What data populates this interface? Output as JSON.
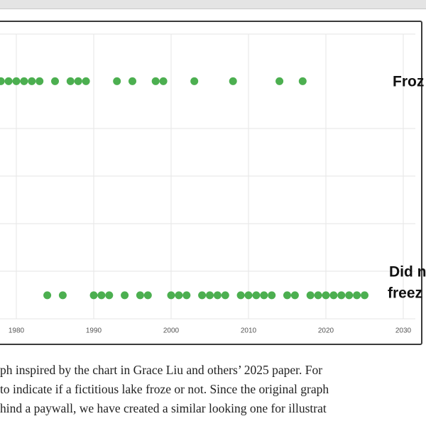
{
  "chart_data": {
    "type": "scatter",
    "annotations": [
      "Froz",
      "Did n",
      "freez"
    ],
    "xlim": [
      1977.89,
      2031.56
    ],
    "xticks": [
      1980,
      1990,
      2000,
      2010,
      2020,
      2030
    ],
    "ylim": [
      -0.11,
      1.22
    ],
    "grid": true,
    "series": [
      {
        "color": "#4caf50",
        "x": [
          1978,
          1979,
          1980,
          1981,
          1982,
          1983,
          1985,
          1987,
          1988,
          1989,
          1993,
          1995,
          1998,
          1999,
          2003,
          2008,
          2014,
          2017
        ],
        "values": [
          1,
          1,
          1,
          1,
          1,
          1,
          1,
          1,
          1,
          1,
          1,
          1,
          1,
          1,
          1,
          1,
          1,
          1
        ]
      },
      {
        "color": "#4caf50",
        "x": [
          1984,
          1986,
          1990,
          1991,
          1992,
          1994,
          1996,
          1997,
          2000,
          2001,
          2002,
          2004,
          2005,
          2006,
          2007,
          2009,
          2010,
          2011,
          2012,
          2013,
          2015,
          2016,
          2018,
          2019,
          2020,
          2021,
          2022,
          2023,
          2024,
          2025
        ],
        "values": [
          0,
          0,
          0,
          0,
          0,
          0,
          0,
          0,
          0,
          0,
          0,
          0,
          0,
          0,
          0,
          0,
          0,
          0,
          0,
          0,
          0,
          0,
          0,
          0,
          0,
          0,
          0,
          0,
          0,
          0
        ]
      }
    ]
  },
  "caption": [
    "ph inspired by the chart in Grace Liu and others’ 2025 paper. For",
    "to indicate if a fictitious lake froze or not. Since the original graph",
    "hind a paywall, we have created a similar looking one for illustrat"
  ]
}
